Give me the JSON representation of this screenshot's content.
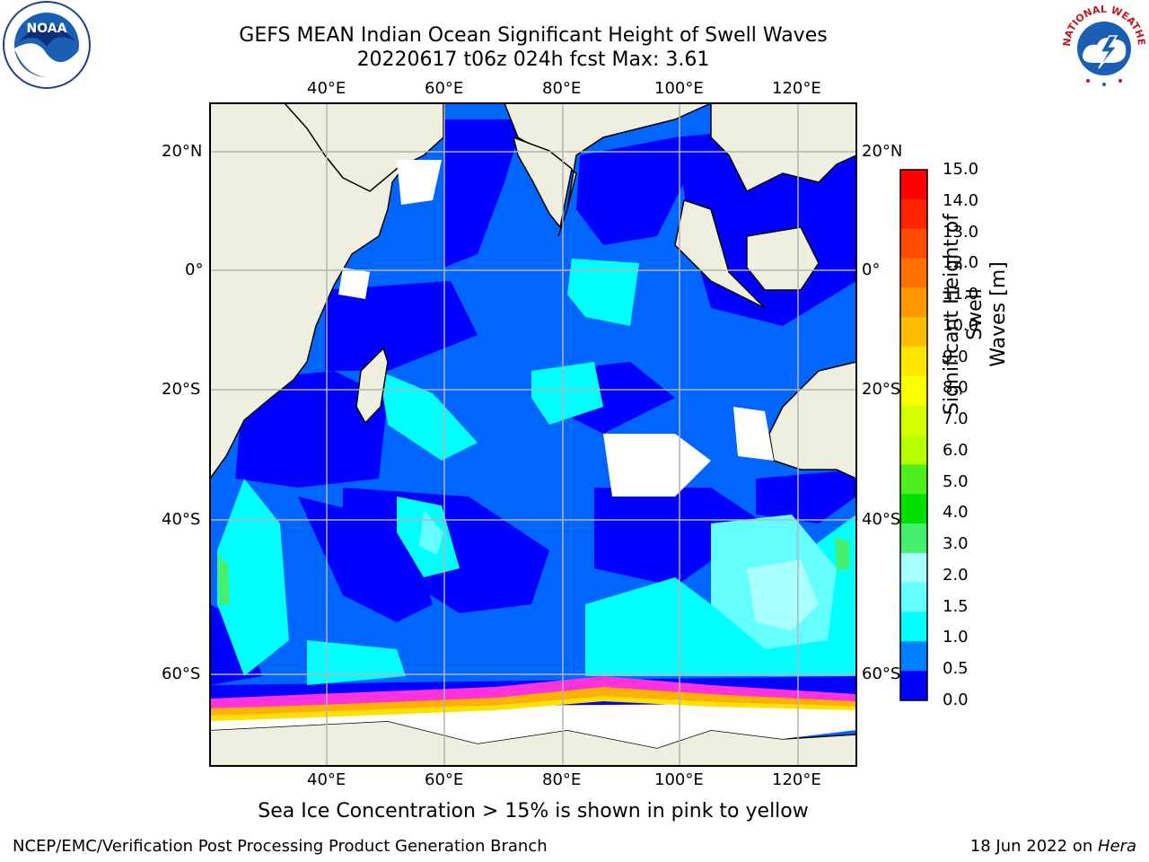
{
  "title": {
    "line1": "GEFS MEAN Indian Ocean Significant Height of Swell Waves",
    "line2": "20220617 t06z 024h fcst   Max: 3.61"
  },
  "map": {
    "lon_ticks": [
      "40°E",
      "60°E",
      "80°E",
      "100°E",
      "120°E"
    ],
    "lat_ticks": [
      "20°N",
      "0°",
      "20°S",
      "40°S",
      "60°S"
    ],
    "colors": {
      "land": "#efefdf",
      "ice": "#ffffff",
      "grid": "#b3b3b3"
    }
  },
  "colorbar": {
    "title_line1": "Significant Height of Swell",
    "title_line2": "Waves [m]",
    "labels": [
      "15.0",
      "14.0",
      "13.0",
      "12.0",
      "11.0",
      "10.0",
      "9.0",
      "8.0",
      "7.0",
      "6.0",
      "5.0",
      "4.0",
      "3.0",
      "2.0",
      "1.5",
      "1.0",
      "0.5",
      "0.0"
    ],
    "colors_top_to_bottom": [
      "#ff0000",
      "#ff2400",
      "#ff4c00",
      "#ff7200",
      "#ff9800",
      "#ffbf00",
      "#ffe500",
      "#f7ff00",
      "#d6ff00",
      "#b8ff00",
      "#4fef1f",
      "#00e000",
      "#47ef6f",
      "#a8ffff",
      "#66ffff",
      "#00ffff",
      "#0080ff",
      "#0000ff"
    ]
  },
  "caption": "Sea Ice Concentration > 15% is shown in pink to yellow",
  "footer": {
    "left": "NCEP/EMC/Verification Post Processing Product Generation Branch",
    "right_date": "18 Jun 2022 on ",
    "right_host": "Hera"
  },
  "logos": {
    "noaa": "NOAA",
    "nws": "NATIONAL WEATHER SERVICE"
  }
}
